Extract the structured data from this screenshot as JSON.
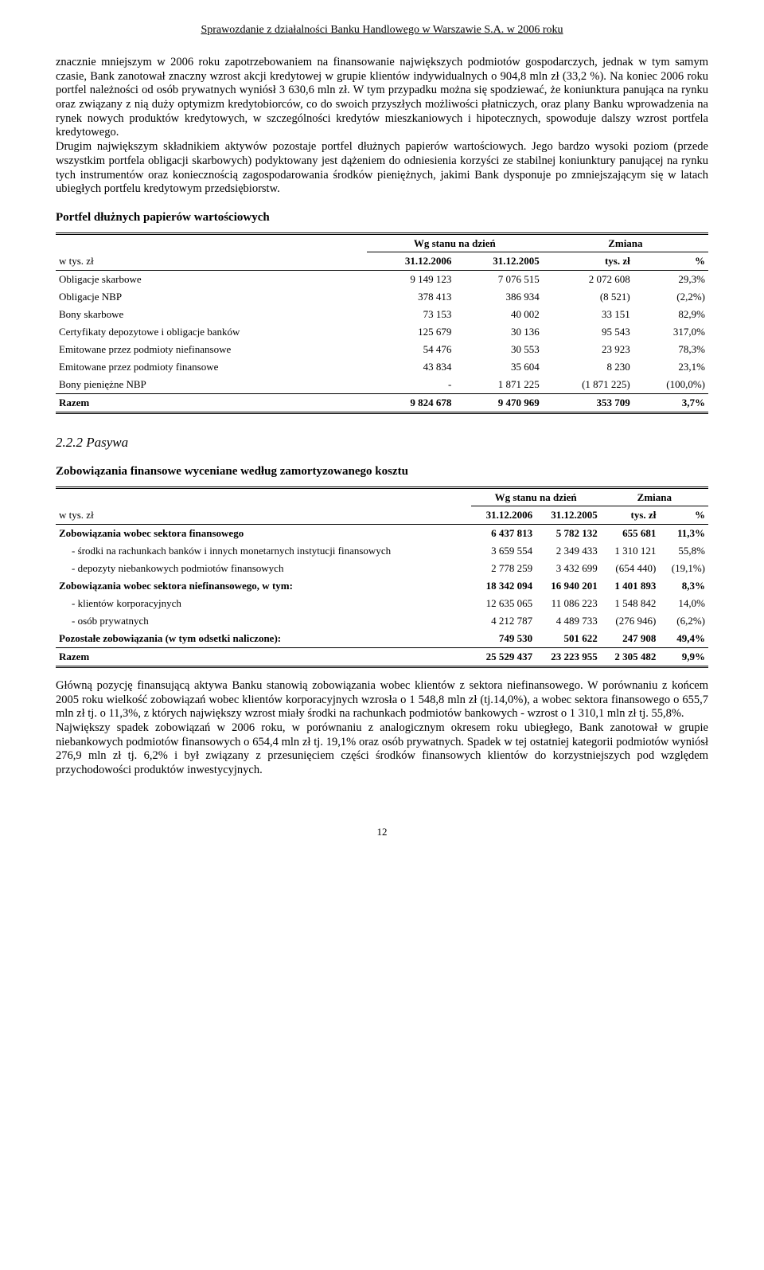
{
  "header": "Sprawozdanie z działalności Banku Handlowego w Warszawie S.A. w 2006 roku",
  "para1": "znacznie mniejszym w 2006 roku zapotrzebowaniem na finansowanie największych podmiotów gospodarczych, jednak w tym samym czasie, Bank zanotował znaczny wzrost akcji kredytowej w grupie klientów indywidualnych o 904,8 mln zł (33,2 %). Na koniec 2006 roku portfel należności od osób prywatnych wyniósł 3 630,6 mln zł. W tym przypadku można się spodziewać, że koniunktura panująca na rynku oraz związany z nią duży optymizm kredytobiorców, co do swoich przyszłych możliwości płatniczych, oraz plany Banku wprowadzenia na rynek nowych produktów kredytowych, w szczególności kredytów mieszkaniowych i hipotecznych, spowoduje dalszy wzrost portfela kredytowego.",
  "para2": "Drugim największym składnikiem aktywów pozostaje portfel dłużnych papierów wartościowych. Jego bardzo wysoki poziom (przede wszystkim portfela obligacji skarbowych) podyktowany jest dążeniem do odniesienia korzyści ze stabilnej koniunktury panującej na rynku tych instrumentów oraz koniecznością zagospodarowania środków pieniężnych, jakimi Bank dysponuje po zmniejszającym się w latach ubiegłych portfelu kredytowym przedsiębiorstw.",
  "table1_title": "Portfel dłużnych papierów wartościowych",
  "table_headers": {
    "group1": "Wg stanu na dzień",
    "group2": "Zmiana",
    "unit": "w tys. zł",
    "c1": "31.12.2006",
    "c2": "31.12.2005",
    "c3": "tys. zł",
    "c4": "%"
  },
  "table1_rows": [
    {
      "label": "Obligacje skarbowe",
      "v1": "9 149 123",
      "v2": "7 076 515",
      "v3": "2 072 608",
      "v4": "29,3%"
    },
    {
      "label": "Obligacje NBP",
      "v1": "378 413",
      "v2": "386 934",
      "v3": "(8 521)",
      "v4": "(2,2%)"
    },
    {
      "label": "Bony skarbowe",
      "v1": "73 153",
      "v2": "40 002",
      "v3": "33 151",
      "v4": "82,9%"
    },
    {
      "label": "Certyfikaty depozytowe i obligacje banków",
      "v1": "125 679",
      "v2": "30 136",
      "v3": "95 543",
      "v4": "317,0%"
    },
    {
      "label": "Emitowane przez podmioty niefinansowe",
      "v1": "54 476",
      "v2": "30 553",
      "v3": "23 923",
      "v4": "78,3%"
    },
    {
      "label": "Emitowane przez podmioty finansowe",
      "v1": "43 834",
      "v2": "35 604",
      "v3": "8 230",
      "v4": "23,1%"
    },
    {
      "label": "Bony pieniężne NBP",
      "v1": "-",
      "v2": "1 871 225",
      "v3": "(1 871 225)",
      "v4": "(100,0%)"
    }
  ],
  "table1_sum": {
    "label": "Razem",
    "v1": "9 824 678",
    "v2": "9 470 969",
    "v3": "353 709",
    "v4": "3,7%"
  },
  "section222": "2.2.2    Pasywa",
  "table2_title": "Zobowiązania finansowe wyceniane według zamortyzowanego kosztu",
  "table2_rows": [
    {
      "label": "Zobowiązania wobec sektora finansowego",
      "v1": "6 437 813",
      "v2": "5 782 132",
      "v3": "655 681",
      "v4": "11,3%",
      "bold": true
    },
    {
      "label": "- środki na rachunkach banków i innych monetarnych instytucji finansowych",
      "v1": "3 659 554",
      "v2": "2 349 433",
      "v3": "1 310 121",
      "v4": "55,8%",
      "indent": true
    },
    {
      "label": "- depozyty niebankowych podmiotów finansowych",
      "v1": "2 778 259",
      "v2": "3 432 699",
      "v3": "(654 440)",
      "v4": "(19,1%)",
      "indent": true
    },
    {
      "label": "Zobowiązania wobec sektora niefinansowego, w tym:",
      "v1": "18 342 094",
      "v2": "16 940 201",
      "v3": "1 401 893",
      "v4": "8,3%",
      "bold": true
    },
    {
      "label": "- klientów korporacyjnych",
      "v1": "12 635 065",
      "v2": "11 086 223",
      "v3": "1 548 842",
      "v4": "14,0%",
      "indent": true
    },
    {
      "label": "- osób prywatnych",
      "v1": "4 212 787",
      "v2": "4 489 733",
      "v3": "(276 946)",
      "v4": "(6,2%)",
      "indent": true
    },
    {
      "label": "Pozostałe zobowiązania (w tym odsetki naliczone):",
      "v1": "749 530",
      "v2": "501 622",
      "v3": "247 908",
      "v4": "49,4%",
      "bold": true
    }
  ],
  "table2_sum": {
    "label": "Razem",
    "v1": "25 529 437",
    "v2": "23 223 955",
    "v3": "2 305 482",
    "v4": "9,9%"
  },
  "para3": "Główną pozycję finansującą aktywa Banku stanowią zobowiązania wobec klientów z sektora niefinansowego. W porównaniu z końcem 2005 roku wielkość zobowiązań wobec klientów korporacyjnych wzrosła o 1 548,8 mln zł (tj.14,0%), a wobec sektora finansowego o 655,7 mln zł tj. o 11,3%, z których największy wzrost miały środki na rachunkach podmiotów bankowych - wzrost o 1 310,1 mln zł tj. 55,8%.",
  "para4": "Największy spadek zobowiązań w 2006 roku, w porównaniu z analogicznym okresem roku ubiegłego, Bank zanotował w grupie niebankowych podmiotów finansowych o 654,4 mln zł tj. 19,1% oraz osób prywatnych. Spadek w tej ostatniej kategorii podmiotów wyniósł 276,9 mln zł tj. 6,2% i był związany z przesunięciem części środków finansowych klientów do korzystniejszych pod względem przychodowości produktów inwestycyjnych.",
  "page_num": "12"
}
